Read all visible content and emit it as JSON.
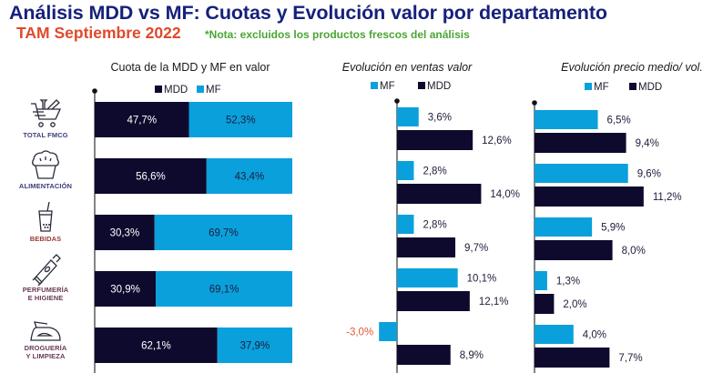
{
  "header": {
    "title": "Análisis MDD vs MF: Cuotas y Evolución valor por departamento",
    "subtitle": "TAM Septiembre 2022",
    "note": "*Nota: excluidos los productos frescos del análisis"
  },
  "categories": [
    {
      "label_lines": [
        "TOTAL FMCG"
      ],
      "icon": "shopping-cart-icon"
    },
    {
      "label_lines": [
        "ALIMENTACIÓN"
      ],
      "icon": "muffin-icon"
    },
    {
      "label_lines": [
        "BEBIDAS"
      ],
      "icon": "drink-cup-icon"
    },
    {
      "label_lines": [
        "PERFUMERÍA",
        "E HIGIENE"
      ],
      "icon": "tube-icon"
    },
    {
      "label_lines": [
        "DROGUERÍA",
        "Y LIMPIEZA"
      ],
      "icon": "iron-icon"
    }
  ],
  "colors": {
    "MDD": "#0e0a2e",
    "MF": "#0aa0dc",
    "negative_label": "#e05a3a"
  },
  "chart_data": [
    {
      "type": "bar",
      "stacked": true,
      "orientation": "horizontal",
      "title": "Cuota de la MDD y MF en valor",
      "categories": [
        "TOTAL FMCG",
        "ALIMENTACIÓN",
        "BEBIDAS",
        "PERFUMERÍA E HIGIENE",
        "DROGUERÍA Y LIMPIEZA"
      ],
      "legend": [
        "MDD",
        "MF"
      ],
      "legend_position": "top",
      "series": [
        {
          "name": "MDD",
          "values": [
            47.7,
            56.6,
            30.3,
            30.9,
            62.1
          ],
          "labels": [
            "47,7%",
            "56,6%",
            "30,3%",
            "30,9%",
            "62,1%"
          ]
        },
        {
          "name": "MF",
          "values": [
            52.3,
            43.4,
            69.7,
            69.1,
            37.9
          ],
          "labels": [
            "52,3%",
            "43,4%",
            "69,7%",
            "69,1%",
            "37,9%"
          ]
        }
      ],
      "xlim": [
        0,
        100
      ]
    },
    {
      "type": "bar",
      "orientation": "horizontal",
      "title": "Evolución en ventas valor",
      "categories": [
        "TOTAL FMCG",
        "ALIMENTACIÓN",
        "BEBIDAS",
        "PERFUMERÍA E HIGIENE",
        "DROGUERÍA Y LIMPIEZA"
      ],
      "legend": [
        "MF",
        "MDD"
      ],
      "legend_position": "top",
      "series": [
        {
          "name": "MF",
          "values": [
            3.6,
            2.8,
            2.8,
            10.1,
            -3.0
          ],
          "labels": [
            "3,6%",
            "2,8%",
            "2,8%",
            "10,1%",
            "-3,0%"
          ]
        },
        {
          "name": "MDD",
          "values": [
            12.6,
            14.0,
            9.7,
            12.1,
            8.9
          ],
          "labels": [
            "12,6%",
            "14,0%",
            "9,7%",
            "12,1%",
            "8,9%"
          ]
        }
      ]
    },
    {
      "type": "bar",
      "orientation": "horizontal",
      "title": "Evolución precio medio/ vol.",
      "categories": [
        "TOTAL FMCG",
        "ALIMENTACIÓN",
        "BEBIDAS",
        "PERFUMERÍA E HIGIENE",
        "DROGUERÍA Y LIMPIEZA"
      ],
      "legend": [
        "MF",
        "MDD"
      ],
      "legend_position": "top",
      "series": [
        {
          "name": "MF",
          "values": [
            6.5,
            9.6,
            5.9,
            1.3,
            4.0
          ],
          "labels": [
            "6,5%",
            "9,6%",
            "5,9%",
            "1,3%",
            "4,0%"
          ]
        },
        {
          "name": "MDD",
          "values": [
            9.4,
            11.2,
            8.0,
            2.0,
            7.7
          ],
          "labels": [
            "9,4%",
            "11,2%",
            "8,0%",
            "2,0%",
            "7,7%"
          ]
        }
      ]
    }
  ]
}
